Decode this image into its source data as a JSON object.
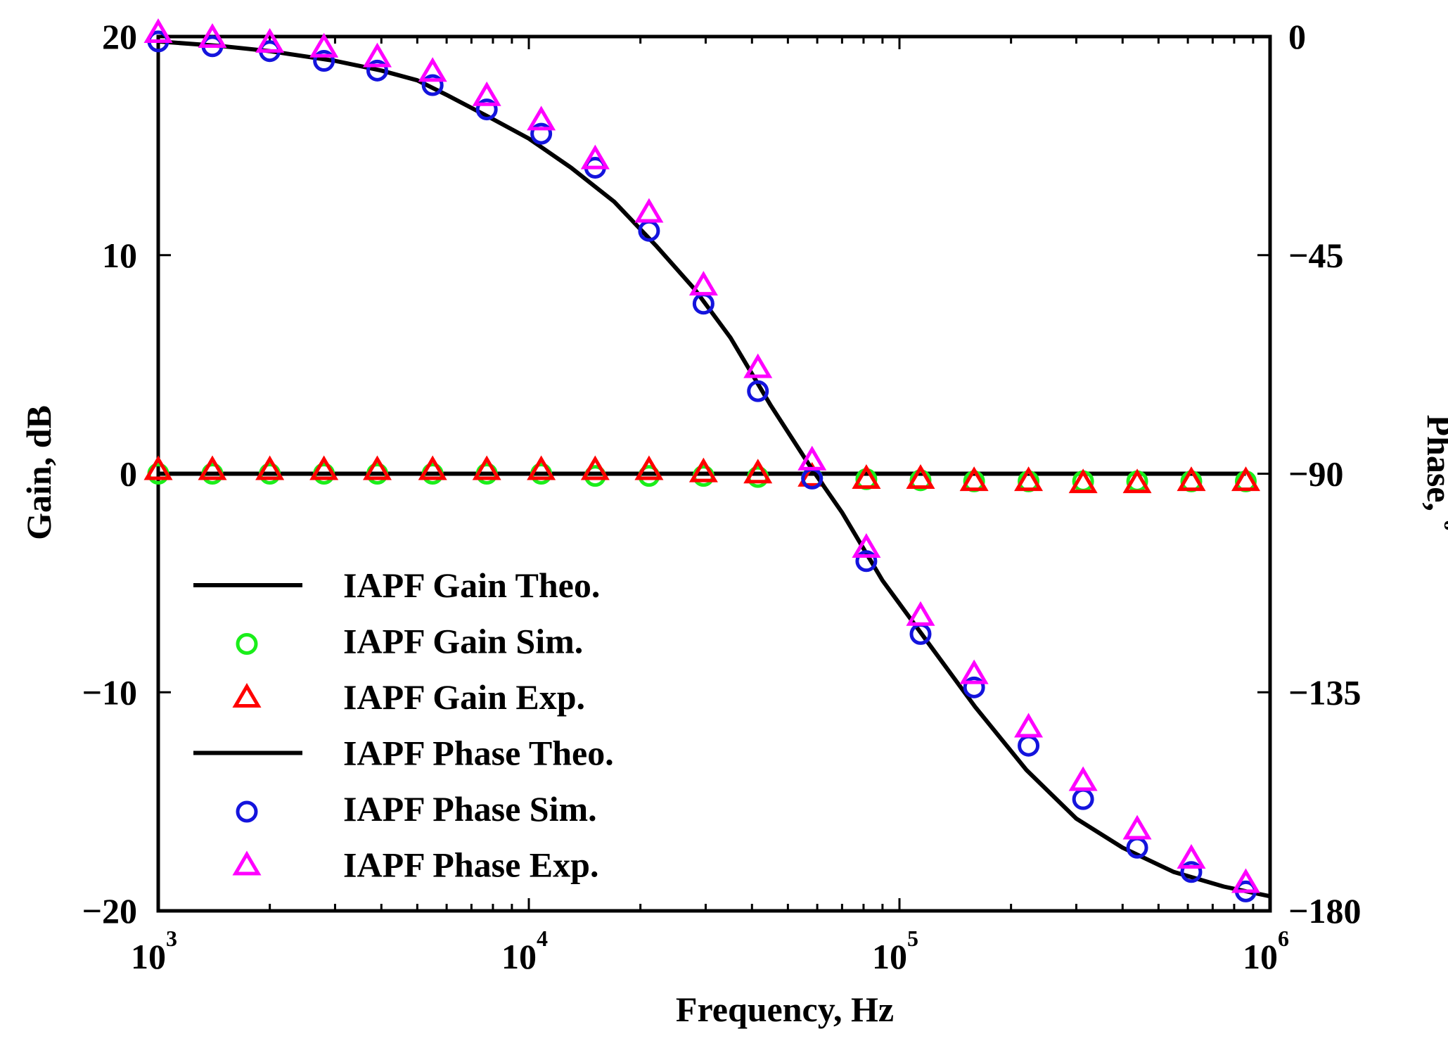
{
  "chart_data": {
    "type": "line",
    "xlabel": "Frequency, Hz",
    "ylabel": "Gain, dB",
    "y2label": "Phase, ",
    "y2label_unit": "o",
    "x_scale": "log",
    "xlim": [
      1000,
      1000000
    ],
    "ylim": [
      -20,
      20
    ],
    "y2lim": [
      -180,
      0
    ],
    "grid": false,
    "legend_position": "lower-left",
    "x_ticks": [
      {
        "base": "10",
        "exp": "3"
      },
      {
        "base": "10",
        "exp": "4"
      },
      {
        "base": "10",
        "exp": "5"
      },
      {
        "base": "10",
        "exp": "6"
      }
    ],
    "y_ticks": [
      "20",
      "10",
      "0",
      "−10",
      "−20"
    ],
    "y2_ticks": [
      "0",
      "−45",
      "−90",
      "−135",
      "−180"
    ],
    "frequencies": [
      1000,
      1400,
      2000,
      2800,
      3900,
      5500,
      7700,
      10800,
      15100,
      21100,
      29600,
      41500,
      58100,
      81400,
      114000,
      159000,
      223000,
      313000,
      438000,
      613000,
      860000
    ],
    "series": [
      {
        "name": "IAPF Gain Theo.",
        "kind": "line",
        "axis": "left",
        "color": "#000000",
        "values": [
          0,
          0,
          0,
          0,
          0,
          0,
          0,
          0,
          0,
          0,
          0,
          0,
          0,
          0,
          0,
          0,
          0,
          0,
          0,
          0,
          0
        ]
      },
      {
        "name": "IAPF Gain Sim.",
        "kind": "circle",
        "axis": "left",
        "color": "#1aee1a",
        "values": [
          0,
          0,
          0,
          0,
          0,
          0,
          0,
          0,
          -0.1,
          -0.1,
          -0.1,
          -0.15,
          -0.2,
          -0.25,
          -0.3,
          -0.35,
          -0.35,
          -0.35,
          -0.35,
          -0.35,
          -0.35
        ]
      },
      {
        "name": "IAPF Gain Exp.",
        "kind": "triangle",
        "axis": "left",
        "color": "#ff0000",
        "values": [
          0,
          0,
          0,
          0,
          0,
          0,
          0,
          0,
          0,
          0,
          -0.1,
          -0.15,
          -0.3,
          -0.4,
          -0.4,
          -0.5,
          -0.5,
          -0.6,
          -0.6,
          -0.5,
          -0.5
        ]
      },
      {
        "name": "IAPF Phase Theo.",
        "kind": "line",
        "axis": "right",
        "color": "#000000",
        "x": [
          1000,
          1500,
          2000,
          3000,
          4000,
          5000,
          6000,
          8000,
          10000,
          13000,
          17000,
          22000,
          28000,
          35000,
          45000,
          58000,
          70000,
          90000,
          120000,
          160000,
          220000,
          300000,
          400000,
          550000,
          750000,
          1000000
        ],
        "values": [
          -1,
          -2,
          -3,
          -5,
          -7,
          -9,
          -12,
          -17,
          -21,
          -27,
          -34,
          -43,
          -52,
          -62,
          -76,
          -89,
          -98,
          -112,
          -125,
          -138,
          -151,
          -161,
          -167,
          -172,
          -175,
          -177
        ]
      },
      {
        "name": "IAPF Phase Sim.",
        "kind": "circle",
        "axis": "right",
        "color": "#1414dd",
        "values": [
          -1,
          -2,
          -3,
          -5,
          -7,
          -10,
          -15,
          -20,
          -27,
          -40,
          -55,
          -73,
          -91,
          -108,
          -123,
          -134,
          -146,
          -157,
          -167,
          -172,
          -176
        ]
      },
      {
        "name": "IAPF Phase Exp.",
        "kind": "triangle",
        "axis": "right",
        "color": "#ff00ff",
        "values": [
          0,
          -1,
          -2,
          -3,
          -5,
          -8,
          -13,
          -18,
          -26,
          -37,
          -52,
          -69,
          -88,
          -106,
          -120,
          -132,
          -143,
          -154,
          -164,
          -170,
          -175
        ]
      }
    ]
  }
}
